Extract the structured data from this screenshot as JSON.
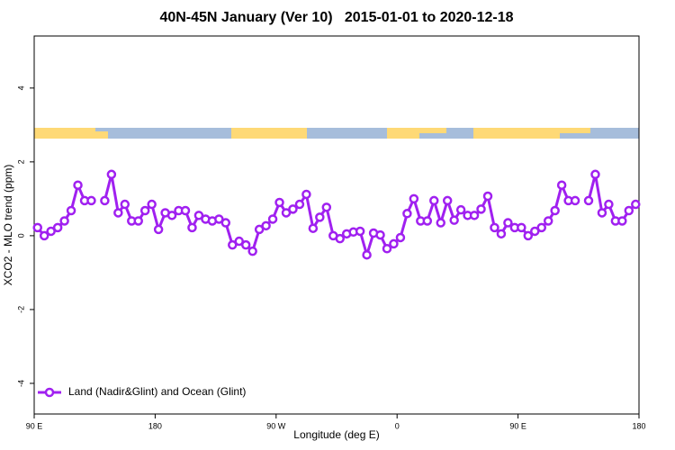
{
  "chart_data": {
    "type": "line",
    "title": "40N-45N January (Ver 10)   2015-01-01 to 2020-12-18",
    "xlabel": "Longitude (deg E)",
    "ylabel": "XCO2 - MLO trend (ppm)",
    "x": [
      92.5,
      97.5,
      102.5,
      107.5,
      112.5,
      117.5,
      122.5,
      127.5,
      132.5,
      137.5,
      142.5,
      147.5,
      152.5,
      157.5,
      162.5,
      167.5,
      172.5,
      177.5,
      182.5,
      187.5,
      192.5,
      197.5,
      202.5,
      207.5,
      212.5,
      217.5,
      222.5,
      227.5,
      232.5,
      237.5,
      242.5,
      247.5,
      252.5,
      257.5,
      262.5,
      267.5,
      272.5,
      277.5,
      282.5,
      287.5,
      292.5,
      297.5,
      302.5,
      307.5,
      312.5,
      317.5,
      322.5,
      327.5,
      332.5,
      337.5,
      342.5,
      347.5,
      352.5,
      357.5,
      362.5,
      367.5,
      372.5,
      377.5,
      382.5,
      387.5,
      392.5,
      397.5,
      402.5,
      407.5,
      412.5,
      417.5,
      422.5,
      427.5,
      432.5,
      437.5,
      442.5,
      447.5,
      452.5,
      457.5,
      462.5,
      467.5,
      472.5,
      477.5,
      482.5,
      487.5,
      492.5,
      497.5,
      502.5,
      507.5,
      512.5,
      517.5,
      522.5,
      527.5,
      532.5,
      537.5
    ],
    "series": [
      {
        "name": "Land (Nadir&Glint) and Ocean (Glint)",
        "color": "#a020f0",
        "values": [
          0.22,
          0.0,
          0.12,
          0.22,
          0.4,
          0.68,
          1.37,
          0.95,
          0.95,
          null,
          0.95,
          1.66,
          0.62,
          0.85,
          0.4,
          0.4,
          0.68,
          0.85,
          0.17,
          0.62,
          0.55,
          0.68,
          0.68,
          0.22,
          0.55,
          0.45,
          0.4,
          0.45,
          0.35,
          -0.25,
          -0.15,
          -0.25,
          -0.42,
          0.17,
          0.27,
          0.45,
          0.9,
          0.62,
          0.72,
          0.85,
          1.12,
          0.2,
          0.5,
          0.77,
          0.0,
          -0.08,
          0.05,
          0.1,
          0.12,
          -0.52,
          0.07,
          0.02,
          -0.35,
          -0.22,
          -0.05,
          0.6,
          1.0,
          0.4,
          0.4,
          0.95,
          0.35,
          0.95,
          0.42,
          0.7,
          0.55,
          0.55,
          0.72,
          1.07,
          0.22,
          0.05,
          0.35,
          0.22,
          0.22,
          0.0,
          0.12,
          0.22,
          0.4,
          0.68,
          1.37,
          0.95,
          0.95,
          null,
          0.95,
          1.66,
          0.62,
          0.85,
          0.4,
          0.4,
          0.68,
          0.85
        ]
      }
    ],
    "xlim": [
      90,
      540
    ],
    "xticks": [
      {
        "value": 90,
        "label": "90 E"
      },
      180,
      {
        "value": 270,
        "label": "90 W"
      },
      {
        "value": 360,
        "label": "0"
      },
      {
        "value": 450,
        "label": "90 E"
      },
      {
        "value": 540,
        "label": "180"
      }
    ],
    "ylim": [
      -4.83,
      5.41
    ],
    "yticks": [
      -4,
      -2,
      0,
      2,
      4
    ],
    "legend": "bottomleft"
  }
}
